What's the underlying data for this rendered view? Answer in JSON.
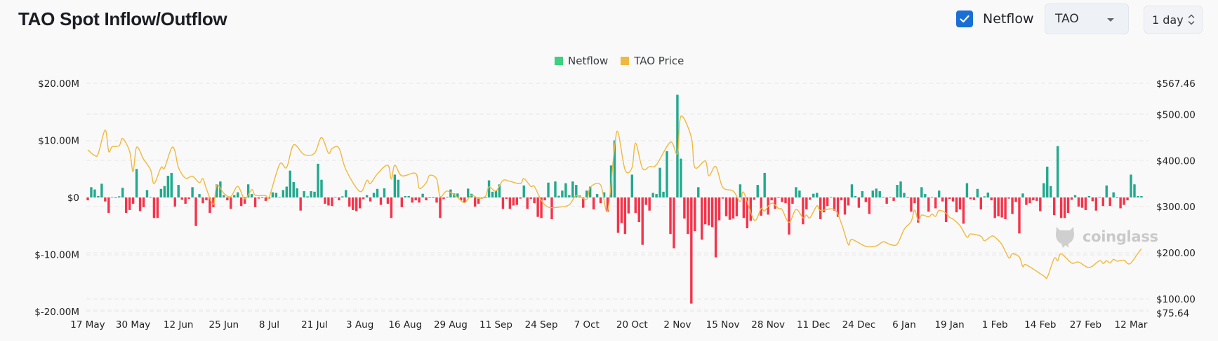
{
  "header": {
    "title": "TAO Spot Inflow/Outflow",
    "netflow_checkbox": {
      "label": "Netflow",
      "checked": true
    },
    "coin_select": {
      "value": "TAO"
    },
    "interval_select": {
      "value": "1 day"
    }
  },
  "watermark": "coinglass",
  "colors": {
    "inflow": "#21a98d",
    "outflow": "#f5334a",
    "price": "#efb940",
    "legend_netflow": "#3ecf7f",
    "checkbox": "#1a6fd4"
  },
  "chart_data": {
    "type": "bar+line",
    "title": "TAO Spot Inflow/Outflow",
    "legend": {
      "placement": "top-center",
      "entries": [
        "Netflow",
        "TAO Price"
      ]
    },
    "grid": true,
    "x_ticks": [
      "17 May",
      "30 May",
      "12 Jun",
      "25 Jun",
      "8 Jul",
      "21 Jul",
      "3 Aug",
      "16 Aug",
      "29 Aug",
      "11 Sep",
      "24 Sep",
      "7 Oct",
      "20 Oct",
      "2 Nov",
      "15 Nov",
      "28 Nov",
      "11 Dec",
      "24 Dec",
      "6 Jan",
      "19 Jan",
      "1 Feb",
      "14 Feb",
      "27 Feb",
      "12 Mar"
    ],
    "y_left": {
      "unit": "USD millions",
      "range": [
        -20,
        20
      ],
      "tick_labels": [
        "$20.00M",
        "$10.00M",
        "$0",
        "$-10.00M",
        "$-20.00M"
      ],
      "tick_values": [
        20,
        10,
        0,
        -10,
        -20
      ]
    },
    "y_right": {
      "unit": "USD",
      "range": [
        75.64,
        567.46
      ],
      "tick_labels": [
        "$567.46",
        "$500.00",
        "$400.00",
        "$300.00",
        "$200.00",
        "$100.00",
        "$75.64"
      ],
      "tick_values": [
        567.46,
        500,
        400,
        300,
        200,
        100,
        75.64
      ]
    },
    "series": [
      {
        "name": "Netflow",
        "type": "bar",
        "axis": "left",
        "start": "17 May",
        "interval": "1 day",
        "values": [
          -0.5,
          1.8,
          1.4,
          0.25,
          2.4,
          -0.7,
          -2.7,
          0,
          -0.1,
          0.2,
          1.7,
          -2.7,
          -2.2,
          -1.1,
          5.0,
          -2.4,
          -1.7,
          1.3,
          0,
          -3.6,
          -3.6,
          1.5,
          2.0,
          3.8,
          4.3,
          -1.6,
          2.2,
          -0.4,
          -1.1,
          -0.25,
          1.8,
          -5.0,
          0.6,
          -1.0,
          -0.5,
          -2.7,
          -1.7,
          2.3,
          2.8,
          0.4,
          -0.5,
          -2.0,
          0.4,
          0.9,
          -1.5,
          -1.1,
          2.3,
          0.6,
          -1.7,
          -0.2,
          -0.1,
          -0.6,
          -0.2,
          0.9,
          0.8,
          0,
          1.3,
          1.9,
          4.7,
          2.7,
          1.6,
          -2.3,
          1.1,
          0.2,
          1.1,
          1.0,
          5.9,
          3.1,
          -1.1,
          -1.4,
          -1.5,
          0,
          -0.5,
          0.2,
          1.3,
          -1.6,
          -2.2,
          -2.4,
          -1.9,
          -0.3,
          0.4,
          -0.7,
          0.8,
          1.5,
          -1.3,
          1.6,
          -1.1,
          -3.6,
          4.0,
          3.1,
          -1.7,
          0.25,
          0.25,
          -0.9,
          -0.5,
          -0.9,
          0.65,
          -0.5,
          -0.1,
          -0.1,
          -0.9,
          -3.6,
          -0.3,
          0,
          1.4,
          0.7,
          0.7,
          -0.5,
          -0.9,
          1.55,
          0.65,
          -1.6,
          -1.1,
          -0.2,
          -0.1,
          3.0,
          1.0,
          1.2,
          2.3,
          -2.0,
          -0.25,
          -2.0,
          -1.4,
          -1.3,
          -0.2,
          2.1,
          -2.0,
          -0.25,
          -1.0,
          -3.4,
          -3.6,
          -0.5,
          2.6,
          -3.8,
          2.8,
          0.3,
          1.2,
          2.5,
          0.4,
          2.8,
          2.2,
          0.35,
          -1.8,
          1.2,
          1.9,
          -2.1,
          0.6,
          -1.0,
          0.9,
          -2.5,
          5.6,
          10.0,
          -6.2,
          -4.5,
          -6.4,
          -2.8,
          4.0,
          -2.7,
          -4.3,
          -8.3,
          -1.3,
          -2.3,
          0.8,
          0.6,
          5.2,
          1.0,
          8.1,
          -6.4,
          -8.9,
          18.0,
          6.8,
          -3.7,
          -6.4,
          -18.6,
          -5.9,
          1.8,
          -7.4,
          -4.7,
          -4.9,
          -5.2,
          -10.5,
          -4.0,
          -0.2,
          -3.3,
          -3.9,
          -3.7,
          -3.3,
          2.3,
          -3.6,
          -5.4,
          -4.1,
          -0.4,
          2.2,
          -3.2,
          4.3,
          -3.0,
          -0.5,
          -2.0,
          -0.1,
          -0.8,
          -1.0,
          -6.5,
          -1.1,
          1.8,
          1.2,
          -4.7,
          -2.1,
          -0.4,
          0.65,
          0.8,
          -3.8,
          -2.6,
          -1.5,
          0,
          -2.3,
          -3.4,
          -0.5,
          -3.0,
          -1.4,
          2.3,
          0.25,
          -1.8,
          1.1,
          -0.8,
          -2.9,
          1.2,
          1.55,
          1.1,
          0.1,
          -1.1,
          0,
          -0.6,
          2.2,
          2.8,
          0.8,
          -0.1,
          -2.5,
          -1.0,
          -4.4,
          1.8,
          0.6,
          -2.5,
          0,
          -1.9,
          1.2,
          -0.7,
          -4.3,
          -0.25,
          -0.7,
          -2.6,
          -2.1,
          -4.6,
          2.5,
          -0.3,
          -0.45,
          1.5,
          -2.1,
          0.2,
          0.85,
          -0.5,
          -3.6,
          -3.3,
          -3.5,
          -3.8,
          -0.2,
          -2.9,
          -0.8,
          -6.3,
          0.7,
          -1.3,
          -1.0,
          -0.5,
          -0.6,
          -2.4,
          2.5,
          5.4,
          2.0,
          -3.1,
          9.0,
          -3.6,
          -3.6,
          -2.7,
          -0.4,
          0.4,
          -1.6,
          -1.8,
          -2.2,
          0.25,
          -0.65,
          -2.3,
          0.1,
          -1.5,
          2.1,
          -1.5,
          0.9,
          -0.1,
          -1.9,
          -1.3,
          -0.5,
          4.0,
          2.3,
          0.25,
          0.25
        ]
      },
      {
        "name": "TAO Price",
        "type": "line",
        "axis": "right",
        "points": [
          [
            "17 May",
            423
          ],
          [
            "19 May",
            411
          ],
          [
            "20 May",
            415
          ],
          [
            "22 May",
            466
          ],
          [
            "23 May",
            420
          ],
          [
            "24 May",
            430
          ],
          [
            "26 May",
            432
          ],
          [
            "27 May",
            448
          ],
          [
            "29 May",
            420
          ],
          [
            "30 May",
            376
          ],
          [
            "31 May",
            429
          ],
          [
            "2 Jun",
            403
          ],
          [
            "4 Jun",
            380
          ],
          [
            "5 Jun",
            350
          ],
          [
            "7 Jun",
            385
          ],
          [
            "8 Jun",
            384
          ],
          [
            "10 Jun",
            427
          ],
          [
            "11 Jun",
            420
          ],
          [
            "12 Jun",
            385
          ],
          [
            "14 Jun",
            362
          ],
          [
            "16 Jun",
            366
          ],
          [
            "18 Jun",
            352
          ],
          [
            "19 Jun",
            361
          ],
          [
            "20 Jun",
            339
          ],
          [
            "22 Jun",
            305
          ],
          [
            "23 Jun",
            347
          ],
          [
            "25 Jun",
            329
          ],
          [
            "27 Jun",
            322
          ],
          [
            "29 Jun",
            344
          ],
          [
            "1 Jul",
            317
          ],
          [
            "3 Jul",
            337
          ],
          [
            "4 Jul",
            325
          ],
          [
            "7 Jul",
            324
          ],
          [
            "8 Jul",
            321
          ],
          [
            "11 Jul",
            392
          ],
          [
            "13 Jul",
            385
          ],
          [
            "15 Jul",
            434
          ],
          [
            "18 Jul",
            413
          ],
          [
            "21 Jul",
            416
          ],
          [
            "23 Jul",
            450
          ],
          [
            "25 Jul",
            416
          ],
          [
            "26 Jul",
            426
          ],
          [
            "28 Jul",
            427
          ],
          [
            "30 Jul",
            380
          ],
          [
            "3 Aug",
            333
          ],
          [
            "5 Aug",
            357
          ],
          [
            "6 Aug",
            350
          ],
          [
            "8 Aug",
            371
          ],
          [
            "11 Aug",
            390
          ],
          [
            "12 Aug",
            360
          ],
          [
            "13 Aug",
            390
          ],
          [
            "15 Aug",
            367
          ],
          [
            "19 Aug",
            372
          ],
          [
            "20 Aug",
            340
          ],
          [
            "22 Aug",
            352
          ],
          [
            "23 Aug",
            368
          ],
          [
            "25 Aug",
            360
          ],
          [
            "26 Aug",
            322
          ],
          [
            "28 Aug",
            334
          ],
          [
            "31 Aug",
            320
          ],
          [
            "2 Sep",
            309
          ],
          [
            "4 Sep",
            325
          ],
          [
            "6 Sep",
            318
          ],
          [
            "8 Sep",
            323
          ],
          [
            "9 Sep",
            343
          ],
          [
            "11 Sep",
            334
          ],
          [
            "13 Sep",
            357
          ],
          [
            "15 Sep",
            355
          ],
          [
            "18 Sep",
            350
          ],
          [
            "19 Sep",
            361
          ],
          [
            "21 Sep",
            344
          ],
          [
            "22 Sep",
            344
          ],
          [
            "24 Sep",
            314
          ],
          [
            "26 Sep",
            299
          ],
          [
            "29 Sep",
            299
          ],
          [
            "2 Oct",
            304
          ],
          [
            "4 Oct",
            324
          ],
          [
            "7 Oct",
            316
          ],
          [
            "8 Oct",
            342
          ],
          [
            "11 Oct",
            347
          ],
          [
            "13 Oct",
            291
          ],
          [
            "15 Oct",
            430
          ],
          [
            "16 Oct",
            461
          ],
          [
            "18 Oct",
            380
          ],
          [
            "20 Oct",
            385
          ],
          [
            "21 Oct",
            438
          ],
          [
            "23 Oct",
            383
          ],
          [
            "25 Oct",
            387
          ],
          [
            "27 Oct",
            391
          ],
          [
            "31 Oct",
            440
          ],
          [
            "2 Nov",
            415
          ],
          [
            "3 Nov",
            496
          ],
          [
            "6 Nov",
            450
          ],
          [
            "7 Nov",
            385
          ],
          [
            "10 Nov",
            399
          ],
          [
            "11 Nov",
            367
          ],
          [
            "13 Nov",
            387
          ],
          [
            "15 Nov",
            342
          ],
          [
            "18 Nov",
            334
          ],
          [
            "20 Nov",
            311
          ],
          [
            "21 Nov",
            331
          ],
          [
            "24 Nov",
            271
          ],
          [
            "26 Nov",
            296
          ],
          [
            "27 Nov",
            291
          ],
          [
            "29 Nov",
            308
          ],
          [
            "1 Dec",
            296
          ],
          [
            "2 Dec",
            294
          ],
          [
            "4 Dec",
            266
          ],
          [
            "6 Dec",
            294
          ],
          [
            "8 Dec",
            276
          ],
          [
            "9 Dec",
            282
          ],
          [
            "10 Dec",
            276
          ],
          [
            "12 Dec",
            302
          ],
          [
            "13 Dec",
            292
          ],
          [
            "17 Dec",
            294
          ],
          [
            "19 Dec",
            264
          ],
          [
            "21 Dec",
            218
          ],
          [
            "22 Dec",
            229
          ],
          [
            "26 Dec",
            214
          ],
          [
            "29 Dec",
            215
          ],
          [
            "31 Dec",
            224
          ],
          [
            "2 Jan",
            218
          ],
          [
            "4 Jan",
            219
          ],
          [
            "6 Jan",
            251
          ],
          [
            "8 Jan",
            268
          ],
          [
            "9 Jan",
            293
          ],
          [
            "10 Jan",
            271
          ],
          [
            "11 Jan",
            282
          ],
          [
            "13 Jan",
            278
          ],
          [
            "14 Jan",
            284
          ],
          [
            "15 Jan",
            279
          ],
          [
            "16 Jan",
            292
          ],
          [
            "18 Jan",
            286
          ],
          [
            "19 Jan",
            277
          ],
          [
            "20 Jan",
            273
          ],
          [
            "22 Jan",
            259
          ],
          [
            "24 Jan",
            234
          ],
          [
            "25 Jan",
            241
          ],
          [
            "28 Jan",
            236
          ],
          [
            "29 Jan",
            226
          ],
          [
            "31 Jan",
            236
          ],
          [
            "1 Feb",
            234
          ],
          [
            "3 Feb",
            218
          ],
          [
            "5 Feb",
            189
          ],
          [
            "6 Feb",
            198
          ],
          [
            "8 Feb",
            191
          ],
          [
            "9 Feb",
            170
          ],
          [
            "10 Feb",
            174
          ],
          [
            "15 Feb",
            150
          ],
          [
            "16 Feb",
            147
          ],
          [
            "18 Feb",
            188
          ],
          [
            "19 Feb",
            183
          ],
          [
            "20 Feb",
            198
          ],
          [
            "23 Feb",
            178
          ],
          [
            "25 Feb",
            180
          ],
          [
            "28 Feb",
            168
          ],
          [
            "3 Mar",
            183
          ],
          [
            "4 Mar",
            177
          ],
          [
            "5 Mar",
            183
          ],
          [
            "6 Mar",
            178
          ],
          [
            "7 Mar",
            186
          ],
          [
            "8 Mar",
            182
          ],
          [
            "10 Mar",
            184
          ],
          [
            "11 Mar",
            177
          ],
          [
            "12 Mar",
            178
          ],
          [
            "14 Mar",
            199
          ],
          [
            "15 Mar",
            209
          ]
        ]
      }
    ]
  }
}
